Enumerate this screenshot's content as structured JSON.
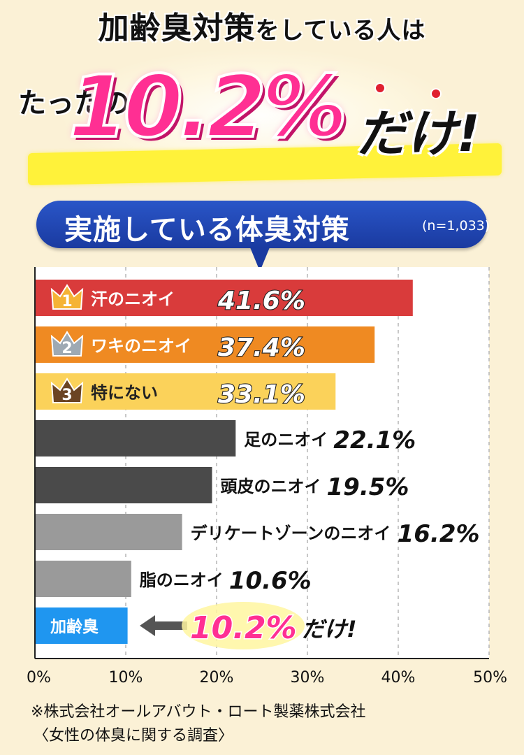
{
  "headline": {
    "line1_a": "加齢臭対策",
    "line1_b": "をしている人は",
    "pre": "たったの",
    "big": "10.2%",
    "post": "だけ!"
  },
  "subtitle": {
    "title": "実施している体臭対策",
    "note": "(n=1,033)"
  },
  "colors": {
    "rank1": "#d93b3b",
    "rank2": "#ef8a22",
    "rank3": "#fbd25a",
    "dark": "#4a4a4a",
    "light": "#9a9a9a",
    "focus": "#1f96f0",
    "pink": "#ff2f93"
  },
  "chart_data": {
    "type": "bar",
    "orientation": "horizontal",
    "title": "実施している体臭対策",
    "note": "(n=1,033)",
    "xlim": [
      0,
      50
    ],
    "ticks": [
      "0%",
      "10%",
      "20%",
      "30%",
      "40%",
      "50%"
    ],
    "grid": true,
    "categories": [
      "汗のニオイ",
      "ワキのニオイ",
      "特にない",
      "足のニオイ",
      "頭皮のニオイ",
      "デリケートゾーンのニオイ",
      "脂のニオイ",
      "加齢臭"
    ],
    "values": [
      41.6,
      37.4,
      33.1,
      22.1,
      19.5,
      16.2,
      10.6,
      10.2
    ],
    "value_labels": [
      "41.6%",
      "37.4%",
      "33.1%",
      "22.1%",
      "19.5%",
      "16.2%",
      "10.6%",
      "10.2%"
    ],
    "ranks": [
      "1",
      "2",
      "3"
    ],
    "annotation": "だけ!"
  },
  "footnote": {
    "line1": "※株式会社オールアバウト・ロート製薬株式会社",
    "line2": "〈女性の体臭に関する調査〉"
  }
}
